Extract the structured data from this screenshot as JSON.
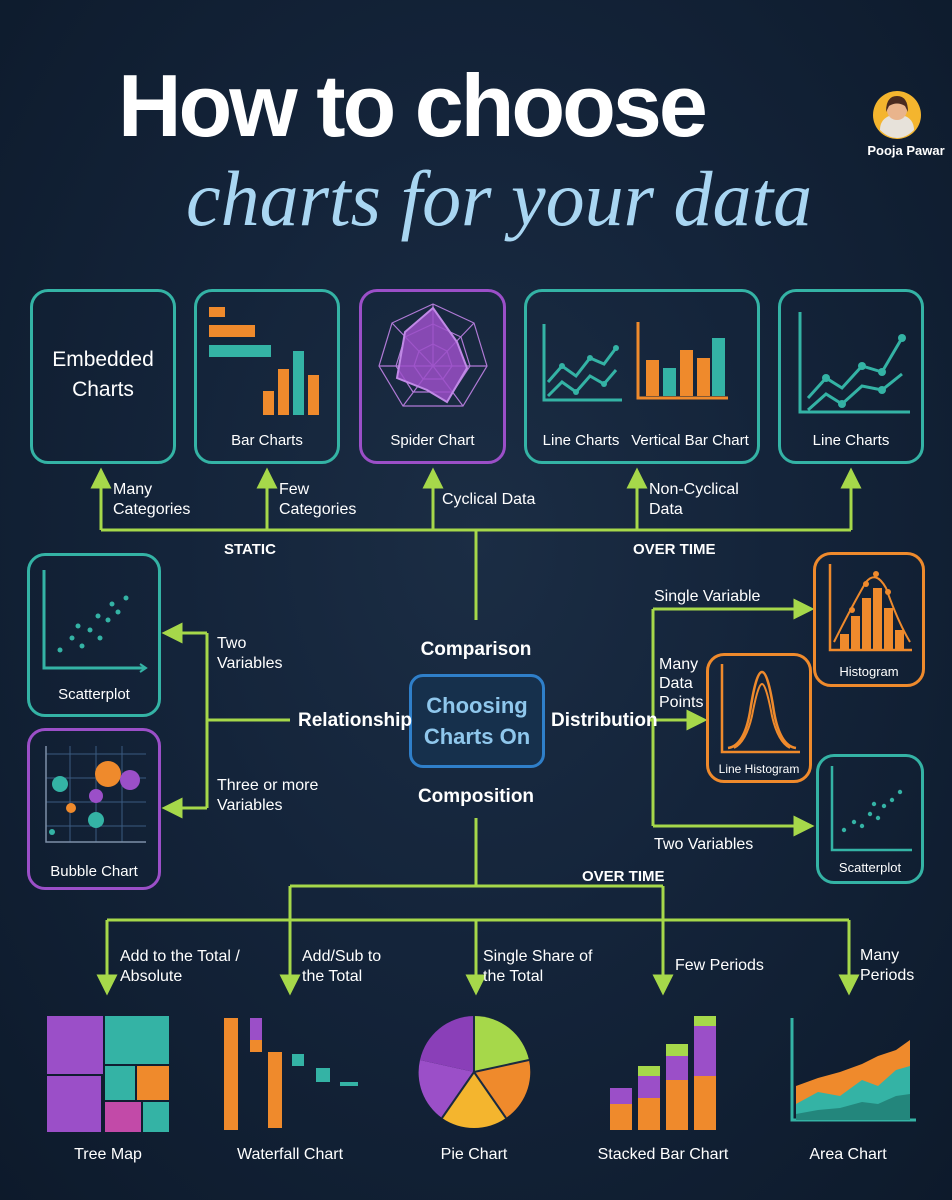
{
  "title": {
    "line1": "How to choose",
    "line2": "charts for your data"
  },
  "author": {
    "name": "Pooja Pawar"
  },
  "center": {
    "label_line1": "Choosing",
    "label_line2": "Charts On"
  },
  "categories": {
    "comparison": "Comparison",
    "relationship": "Relationship",
    "distribution": "Distribution",
    "composition": "Composition"
  },
  "comparison": {
    "static_label": "STATIC",
    "over_time_label": "OVER TIME",
    "branches": {
      "many_categories": "Many\nCategories",
      "few_categories": "Few\nCategories",
      "cyclical": "Cyclical Data",
      "non_cyclical": "Non-Cyclical\nData"
    },
    "charts": {
      "embedded": "Embedded\nCharts",
      "bar": "Bar Charts",
      "spider": "Spider Chart",
      "line": "Line Charts",
      "vertical_bar": "Vertical Bar Chart",
      "line2": "Line Charts"
    }
  },
  "relationship": {
    "two_variables": "Two\nVariables",
    "three_variables": "Three or more\nVariables",
    "charts": {
      "scatter": "Scatterplot",
      "bubble": "Bubble Chart"
    }
  },
  "distribution": {
    "single_variable": "Single Variable",
    "many_points": "Many\nData\nPoints",
    "two_variables": "Two Variables",
    "charts": {
      "histogram": "Histogram",
      "line_histogram": "Line Histogram",
      "scatter": "Scatterplot"
    }
  },
  "composition": {
    "over_time_label": "OVER TIME",
    "branches": {
      "add_total": "Add to the Total /\nAbsolute",
      "add_sub": "Add/Sub to\nthe Total",
      "single_share": "Single Share of\nthe Total",
      "few_periods": "Few Periods",
      "many_periods": "Many\nPeriods"
    },
    "charts": {
      "tree_map": "Tree Map",
      "waterfall": "Waterfall Chart",
      "pie": "Pie Chart",
      "stacked_bar": "Stacked Bar Chart",
      "area": "Area Chart"
    }
  },
  "colors": {
    "teal": "#34b3a5",
    "orange": "#ef8a2c",
    "purple": "#9b4fc8",
    "lime": "#a6d84a",
    "blue": "#2f7fc9",
    "title_blue": "#a9d6f2"
  }
}
